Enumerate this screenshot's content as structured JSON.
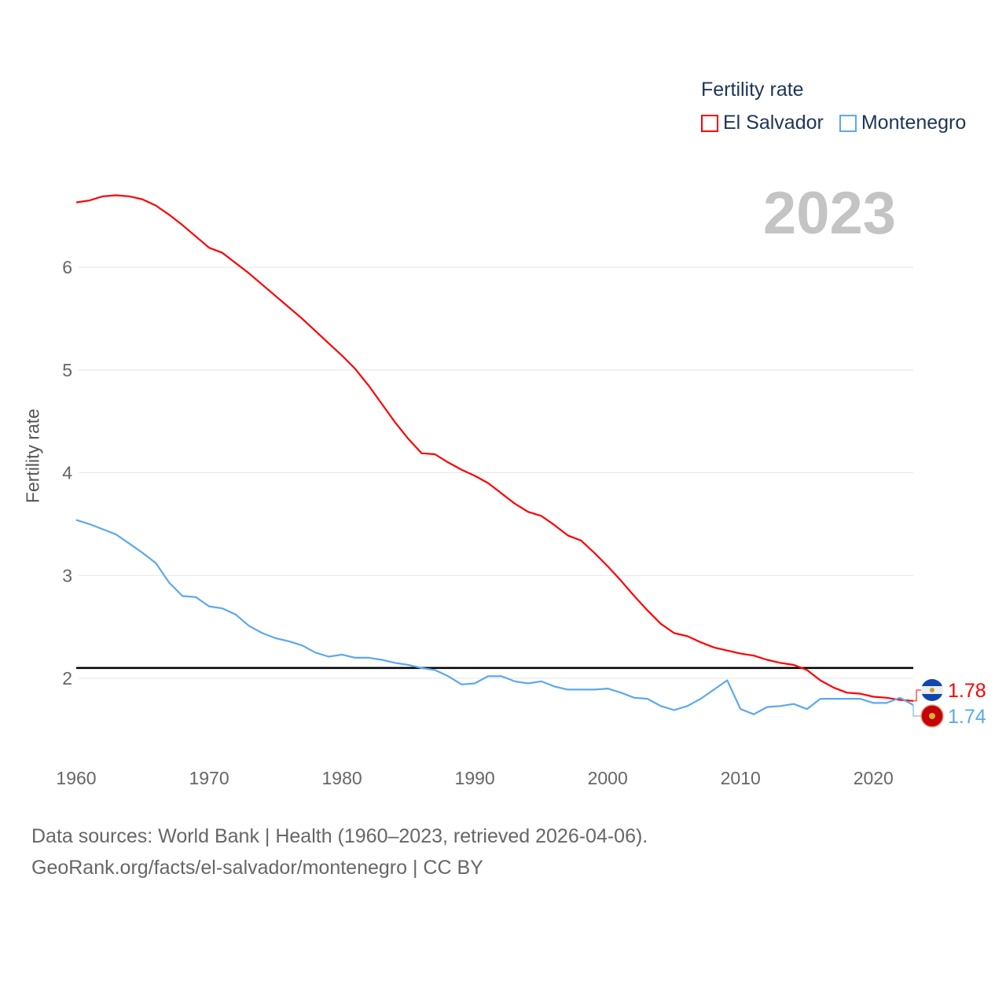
{
  "legend": {
    "title": "Fertility rate",
    "items": [
      {
        "name": "El Salvador",
        "color": "#ff0000"
      },
      {
        "name": "Montenegro",
        "color": "#5ba8f0"
      }
    ]
  },
  "year_display": "2023",
  "end_labels": {
    "el_salvador": "1.78",
    "montenegro": "1.74"
  },
  "footer": {
    "line1": "Data sources: World Bank | Health (1960–2023, retrieved 2026-04-06).",
    "line2": "GeoRank.org/facts/el-salvador/montenegro | CC BY"
  },
  "chart_data": {
    "type": "line",
    "title": "Fertility rate",
    "xlabel": "",
    "ylabel": "Fertility rate",
    "xlim": [
      1960,
      2023
    ],
    "ylim": [
      1.4,
      7.0
    ],
    "yticks": [
      2,
      3,
      4,
      5,
      6
    ],
    "xticks": [
      1960,
      1970,
      1980,
      1990,
      2000,
      2010,
      2020
    ],
    "grid": true,
    "legend_position": "top-right",
    "reference_line": {
      "y": 2.1,
      "color": "#000000"
    },
    "x_start": 1960,
    "series": [
      {
        "name": "El Salvador",
        "color": "#ff0000",
        "values": [
          6.63,
          6.65,
          6.69,
          6.7,
          6.69,
          6.66,
          6.6,
          6.51,
          6.41,
          6.3,
          6.19,
          6.14,
          6.04,
          5.94,
          5.83,
          5.72,
          5.61,
          5.5,
          5.38,
          5.26,
          5.14,
          5.01,
          4.85,
          4.67,
          4.49,
          4.33,
          4.19,
          4.18,
          4.1,
          4.03,
          3.97,
          3.9,
          3.8,
          3.7,
          3.62,
          3.58,
          3.49,
          3.39,
          3.34,
          3.22,
          3.09,
          2.95,
          2.8,
          2.66,
          2.53,
          2.44,
          2.41,
          2.35,
          2.3,
          2.27,
          2.24,
          2.22,
          2.18,
          2.15,
          2.13,
          2.08,
          1.98,
          1.91,
          1.86,
          1.85,
          1.82,
          1.81,
          1.79,
          1.78
        ]
      },
      {
        "name": "Montenegro",
        "color": "#5ba8f0",
        "values": [
          3.54,
          3.5,
          3.45,
          3.4,
          3.31,
          3.22,
          3.12,
          2.93,
          2.8,
          2.79,
          2.7,
          2.68,
          2.62,
          2.51,
          2.44,
          2.39,
          2.36,
          2.32,
          2.25,
          2.21,
          2.23,
          2.2,
          2.2,
          2.18,
          2.15,
          2.13,
          2.1,
          2.08,
          2.02,
          1.94,
          1.95,
          2.02,
          2.02,
          1.97,
          1.95,
          1.97,
          1.92,
          1.89,
          1.89,
          1.89,
          1.9,
          1.86,
          1.81,
          1.8,
          1.73,
          1.69,
          1.73,
          1.8,
          1.89,
          1.98,
          1.7,
          1.65,
          1.72,
          1.73,
          1.75,
          1.7,
          1.8,
          1.8,
          1.8,
          1.8,
          1.76,
          1.76,
          1.81,
          1.74
        ]
      }
    ]
  }
}
